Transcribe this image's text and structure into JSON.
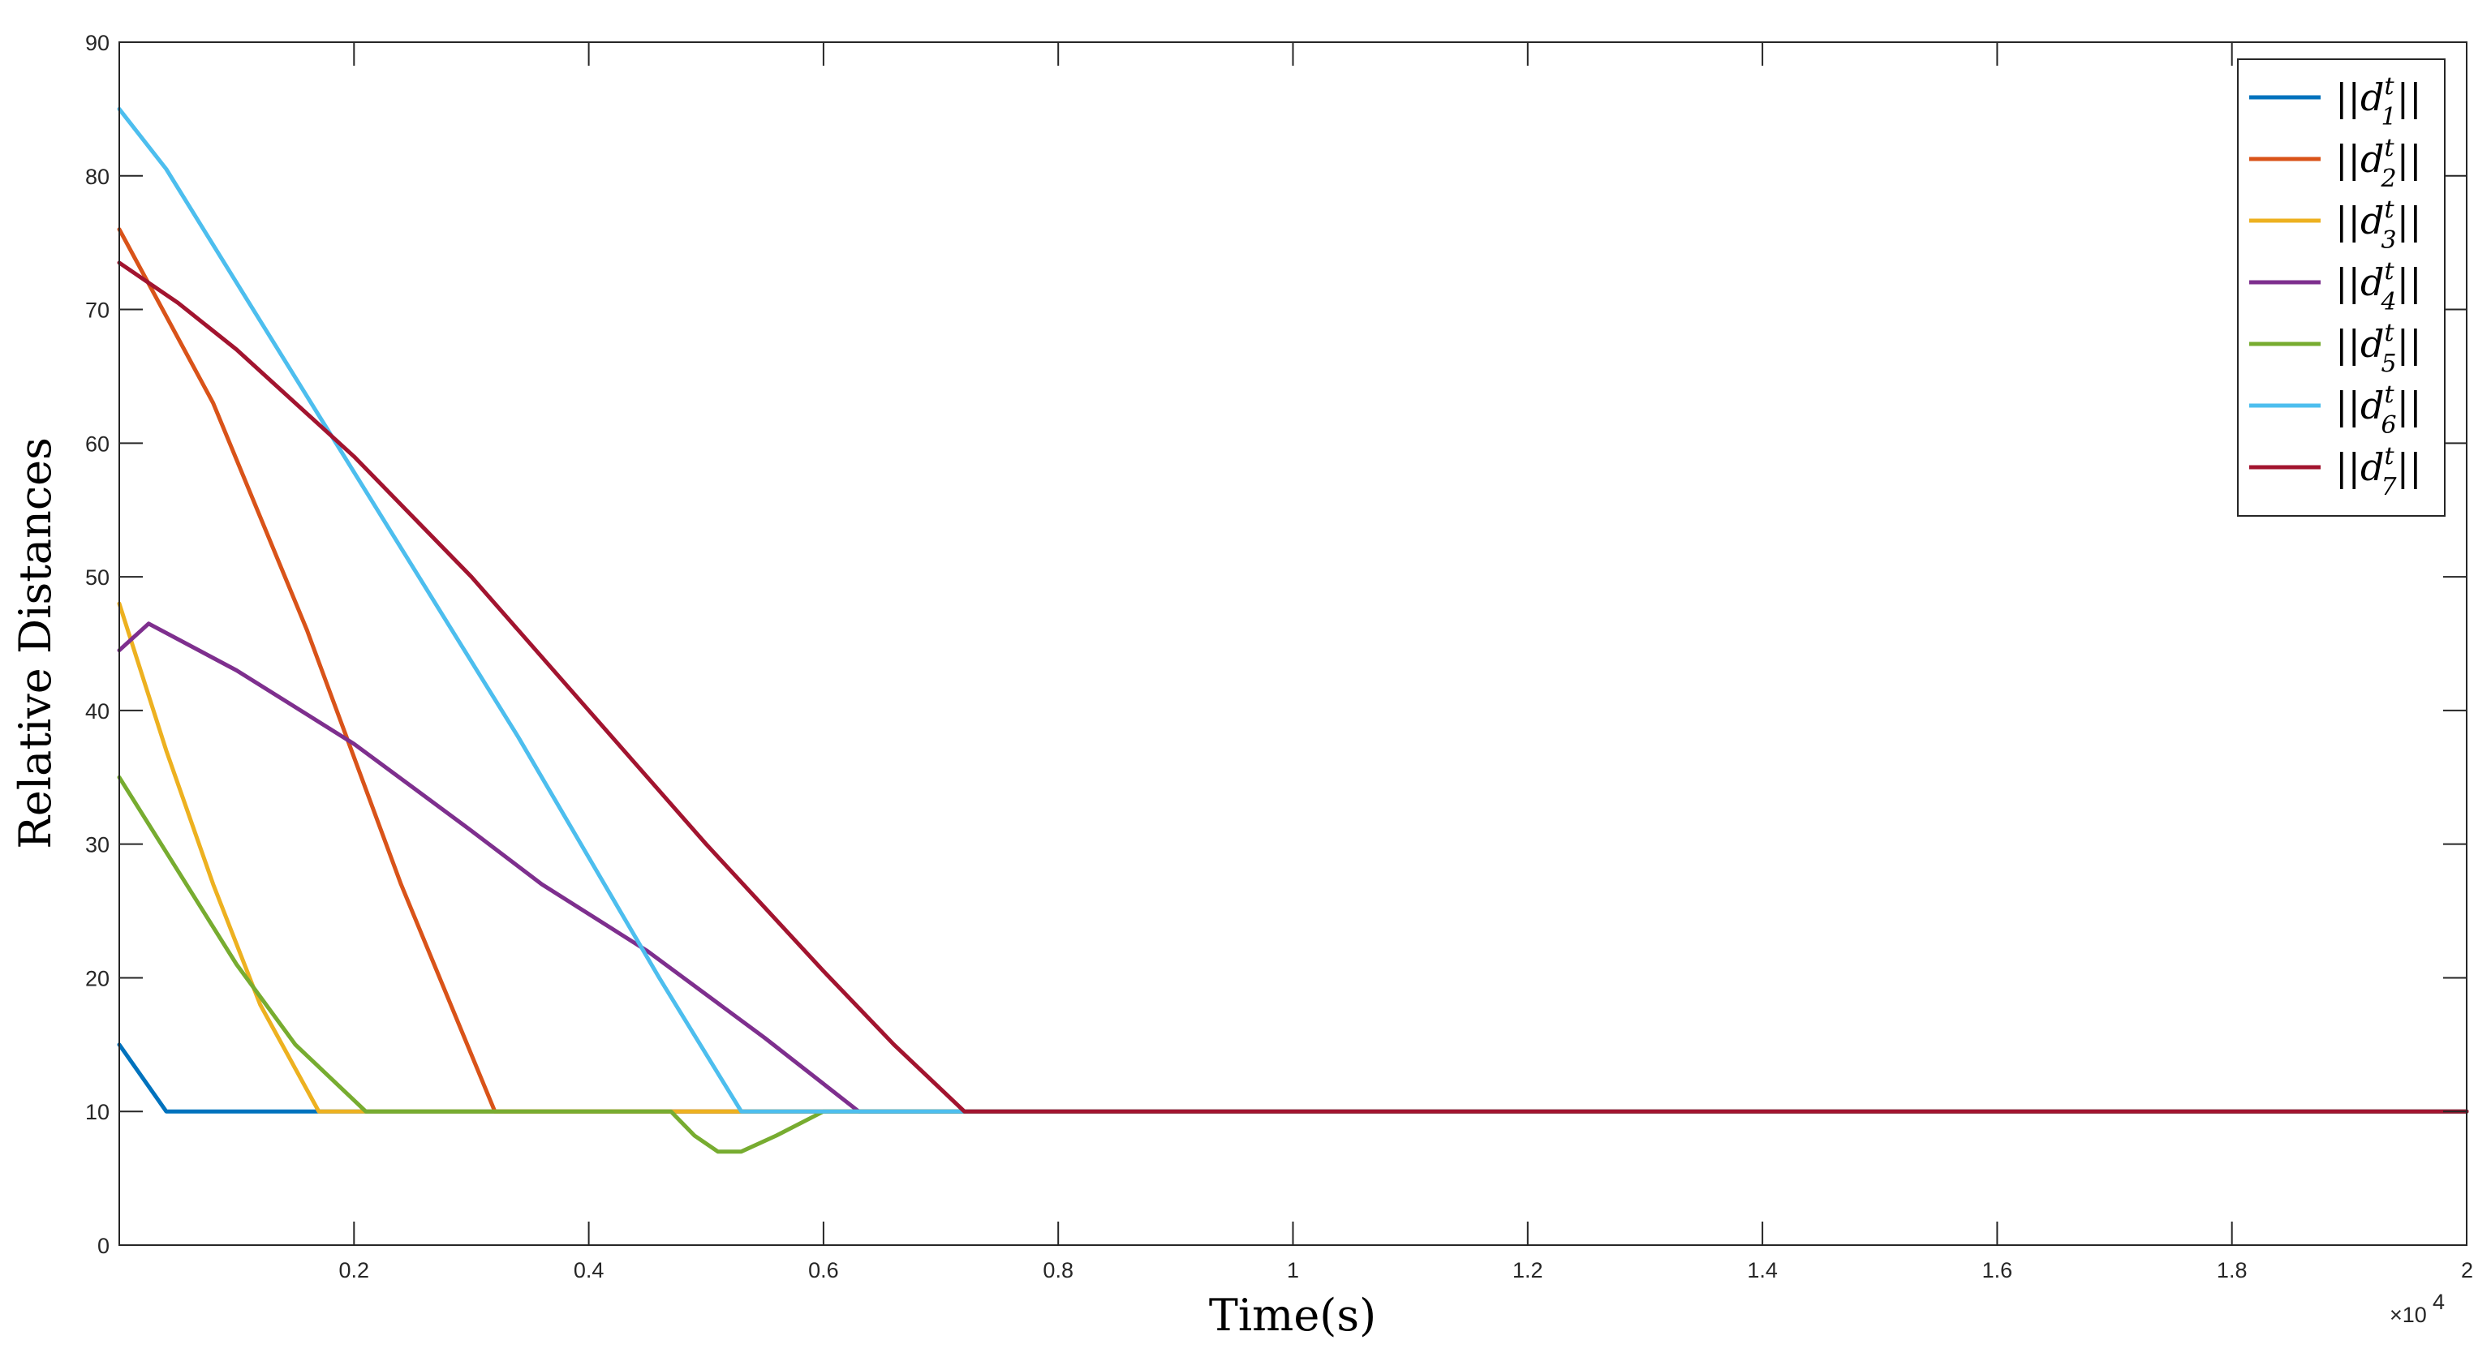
{
  "chart_data": {
    "type": "line",
    "xlabel": "Time(s)",
    "ylabel": "Relative Distances",
    "x_exponent_label": "×10",
    "x_exponent_power": "4",
    "xlim": [
      0,
      20000
    ],
    "ylim": [
      0,
      90
    ],
    "x_ticks": [
      0.2,
      0.4,
      0.6,
      0.8,
      1,
      1.2,
      1.4,
      1.6,
      1.8,
      2
    ],
    "x_tick_labels": [
      "0.2",
      "0.4",
      "0.6",
      "0.8",
      "1",
      "1.2",
      "1.4",
      "1.6",
      "1.8",
      "2"
    ],
    "y_ticks": [
      0,
      10,
      20,
      30,
      40,
      50,
      60,
      70,
      80,
      90
    ],
    "y_tick_labels": [
      "0",
      "10",
      "20",
      "30",
      "40",
      "50",
      "60",
      "70",
      "80",
      "90"
    ],
    "grid": false,
    "legend_position": "top-right",
    "series": [
      {
        "name": "||d_1^t||",
        "legend_base": "d",
        "legend_sub": "1",
        "legend_sup": "t",
        "color": "#0072BD",
        "x": [
          0,
          400,
          20000
        ],
        "y": [
          15,
          10,
          10
        ]
      },
      {
        "name": "||d_2^t||",
        "legend_base": "d",
        "legend_sub": "2",
        "legend_sup": "t",
        "color": "#D95319",
        "x": [
          0,
          800,
          1600,
          2400,
          3200,
          20000
        ],
        "y": [
          76,
          63,
          46,
          27,
          10,
          10
        ]
      },
      {
        "name": "||d_3^t||",
        "legend_base": "d",
        "legend_sub": "3",
        "legend_sup": "t",
        "color": "#EDB120",
        "x": [
          0,
          400,
          800,
          1200,
          1700,
          20000
        ],
        "y": [
          48,
          37,
          27,
          18,
          10,
          10
        ]
      },
      {
        "name": "||d_4^t||",
        "legend_base": "d",
        "legend_sub": "4",
        "legend_sup": "t",
        "color": "#7E2F8E",
        "x": [
          0,
          250,
          1000,
          2000,
          3000,
          3600,
          4500,
          5500,
          6300,
          20000
        ],
        "y": [
          44.5,
          46.5,
          43,
          37.5,
          31,
          27,
          22,
          15.5,
          10,
          10
        ]
      },
      {
        "name": "||d_5^t||",
        "legend_base": "d",
        "legend_sub": "5",
        "legend_sup": "t",
        "color": "#77AC30",
        "x": [
          0,
          500,
          1000,
          1500,
          2100,
          4700,
          4900,
          5100,
          5300,
          5600,
          6000,
          20000
        ],
        "y": [
          35,
          28,
          21,
          15,
          10,
          10,
          8.2,
          7,
          7,
          8.2,
          10,
          10
        ]
      },
      {
        "name": "||d_6^t||",
        "legend_base": "d",
        "legend_sub": "6",
        "legend_sup": "t",
        "color": "#4DBEEE",
        "x": [
          0,
          400,
          1000,
          1600,
          2200,
          2800,
          3400,
          4000,
          4600,
          5300,
          20000
        ],
        "y": [
          85,
          80.5,
          72,
          63.5,
          55,
          46.5,
          38,
          29,
          20,
          10,
          10
        ]
      },
      {
        "name": "||d_7^t||",
        "legend_base": "d",
        "legend_sub": "7",
        "legend_sup": "t",
        "color": "#A2142F",
        "x": [
          0,
          500,
          1000,
          2000,
          3000,
          4000,
          5000,
          6000,
          6600,
          7200,
          20000
        ],
        "y": [
          73.5,
          70.5,
          67,
          59,
          50,
          40,
          30,
          20.5,
          15,
          10,
          10
        ]
      }
    ]
  }
}
